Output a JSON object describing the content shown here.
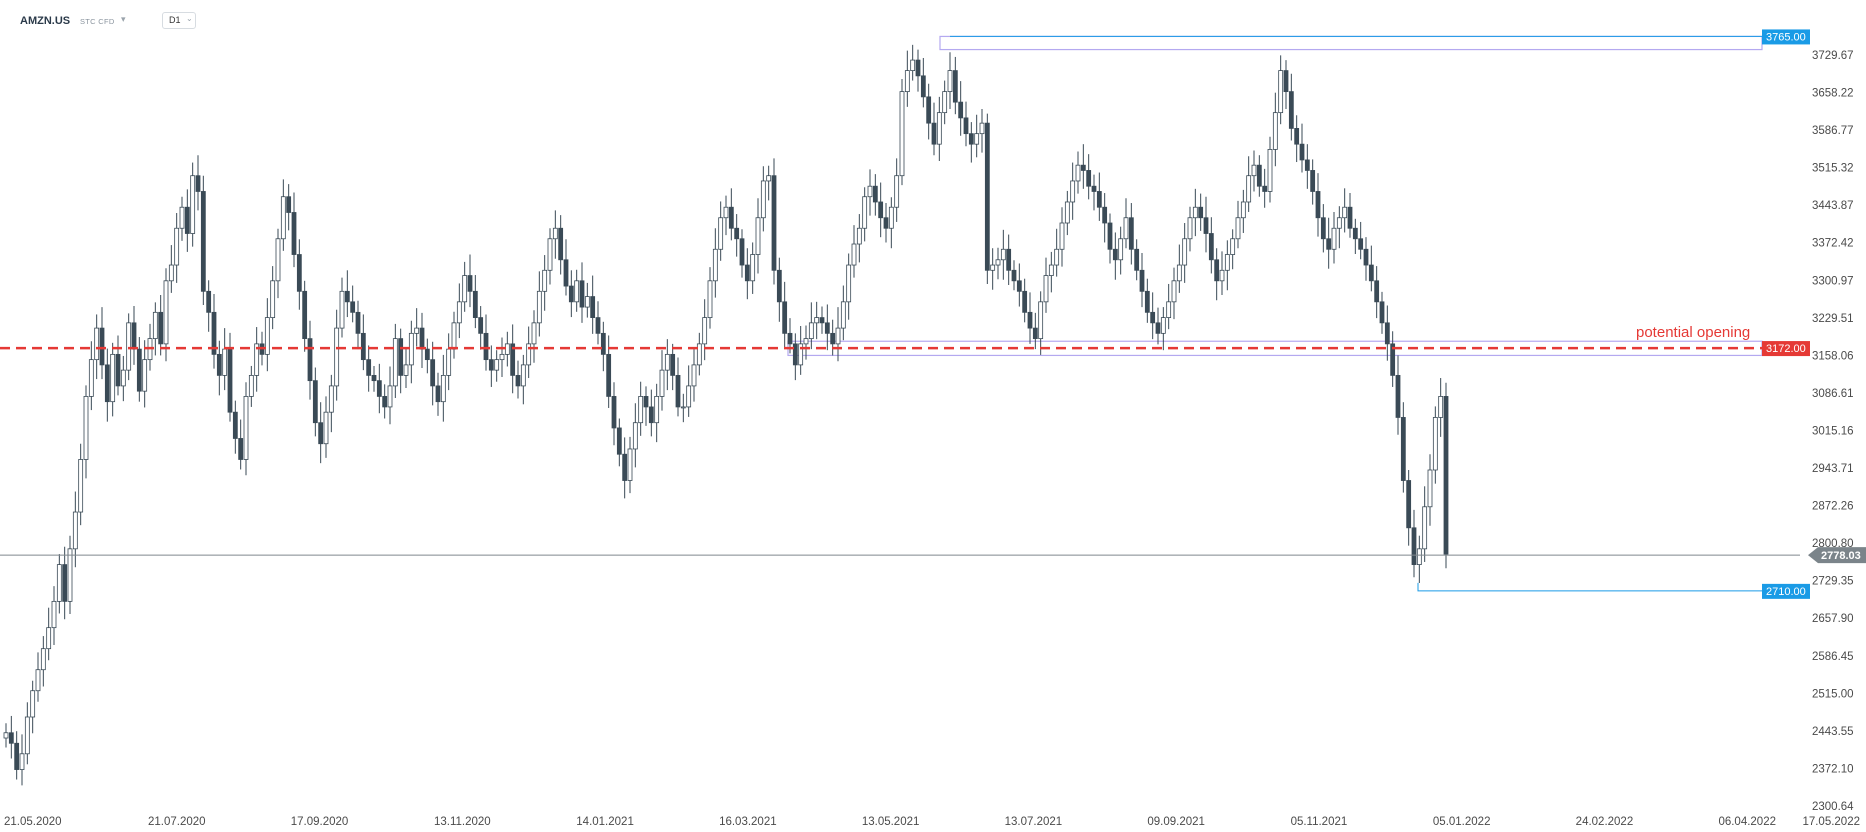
{
  "header": {
    "symbol": "AMZN.US",
    "symbol_type": "STC CFD",
    "timeframe": "D1"
  },
  "chart_data": {
    "type": "candlestick",
    "y_ticks": [
      "3729.67",
      "3658.22",
      "3586.77",
      "3515.32",
      "3443.87",
      "3372.42",
      "3300.97",
      "3229.51",
      "3158.06",
      "3086.61",
      "3015.16",
      "2943.71",
      "2872.26",
      "2800.80",
      "2729.35",
      "2657.90",
      "2586.45",
      "2515.00",
      "2443.55",
      "2372.10",
      "2300.64"
    ],
    "x_ticks": [
      "21.05.2020",
      "21.07.2020",
      "17.09.2020",
      "13.11.2020",
      "14.01.2021",
      "16.03.2021",
      "13.05.2021",
      "13.07.2021",
      "09.09.2021",
      "05.11.2021",
      "05.01.2022",
      "24.02.2022",
      "06.04.2022",
      "17.05.2022"
    ],
    "ylim": [
      2300.64,
      3765.0
    ],
    "current_price": "2778.03",
    "levels": [
      {
        "name": "resistance",
        "label": "3765.00",
        "value": 3765.0,
        "color": "#1a9be6"
      },
      {
        "name": "potential-opening",
        "label": "3172.00",
        "value": 3172.0,
        "color": "#e53935"
      },
      {
        "name": "support",
        "label": "2710.00",
        "value": 2710.0,
        "color": "#1a9be6"
      }
    ],
    "annotation": "potential opening",
    "zones": [
      {
        "name": "top-zone",
        "from": 3740,
        "to": 3765
      },
      {
        "name": "mid-zone",
        "from": 3158,
        "to": 3185
      }
    ],
    "series": [
      {
        "values": [
          2440,
          2420,
          2370,
          2400,
          2470,
          2520,
          2560,
          2600,
          2640,
          2690,
          2760,
          2690,
          2790,
          2860,
          2960,
          3080,
          3150,
          3210,
          3140,
          3070,
          3160,
          3100,
          3130,
          3220,
          3170,
          3090,
          3150,
          3190,
          3240,
          3180,
          3300,
          3330,
          3400,
          3440,
          3390,
          3500,
          3470,
          3280,
          3240,
          3160,
          3120,
          3170,
          3050,
          3000,
          2960,
          3080,
          3120,
          3180,
          3160,
          3230,
          3300,
          3380,
          3460,
          3430,
          3350,
          3280,
          3190,
          3110,
          3030,
          2990,
          3050,
          3100,
          3210,
          3280,
          3260,
          3240,
          3200,
          3150,
          3120,
          3110,
          3080,
          3060,
          3100,
          3190,
          3120,
          3140,
          3200,
          3210,
          3170,
          3150,
          3100,
          3070,
          3120,
          3170,
          3220,
          3260,
          3310,
          3280,
          3230,
          3200,
          3150,
          3130,
          3150,
          3160,
          3180,
          3120,
          3100,
          3140,
          3180,
          3220,
          3280,
          3320,
          3380,
          3400,
          3340,
          3290,
          3260,
          3300,
          3250,
          3270,
          3230,
          3200,
          3160,
          3080,
          3020,
          2970,
          2920,
          2980,
          3030,
          3080,
          3060,
          3030,
          3080,
          3130,
          3160,
          3120,
          3060,
          3060,
          3100,
          3140,
          3180,
          3230,
          3300,
          3360,
          3420,
          3440,
          3400,
          3380,
          3330,
          3300,
          3350,
          3420,
          3490,
          3500,
          3320,
          3260,
          3200,
          3180,
          3140,
          3180,
          3190,
          3220,
          3230,
          3220,
          3200,
          3180,
          3210,
          3260,
          3330,
          3370,
          3400,
          3460,
          3480,
          3450,
          3420,
          3400,
          3440,
          3500,
          3660,
          3700,
          3720,
          3690,
          3650,
          3600,
          3560,
          3620,
          3660,
          3700,
          3640,
          3610,
          3580,
          3560,
          3580,
          3600,
          3320,
          3330,
          3340,
          3360,
          3320,
          3300,
          3280,
          3240,
          3210,
          3190,
          3260,
          3310,
          3330,
          3360,
          3410,
          3450,
          3490,
          3520,
          3510,
          3480,
          3470,
          3440,
          3410,
          3360,
          3340,
          3380,
          3420,
          3360,
          3320,
          3280,
          3240,
          3220,
          3200,
          3230,
          3260,
          3300,
          3330,
          3380,
          3420,
          3440,
          3420,
          3390,
          3340,
          3300,
          3320,
          3350,
          3380,
          3420,
          3450,
          3500,
          3520,
          3480,
          3470,
          3550,
          3620,
          3700,
          3660,
          3590,
          3560,
          3530,
          3510,
          3470,
          3420,
          3380,
          3360,
          3400,
          3420,
          3440,
          3400,
          3380,
          3360,
          3330,
          3300,
          3260,
          3220,
          3180,
          3120,
          3040,
          2920,
          2830,
          2760,
          2790,
          2870,
          2940,
          3040,
          3080,
          2780
        ]
      }
    ]
  }
}
